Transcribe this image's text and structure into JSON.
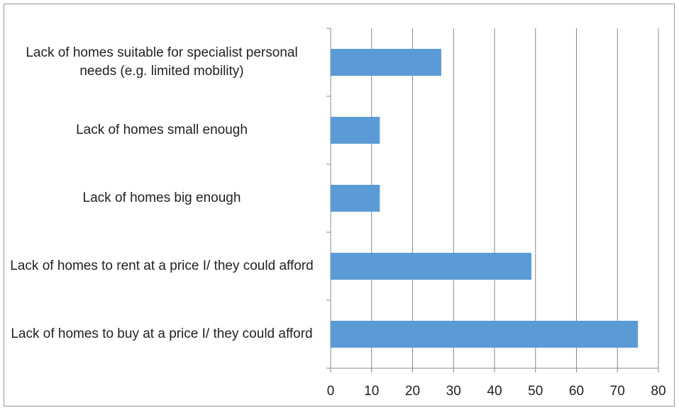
{
  "chart_data": {
    "type": "bar",
    "orientation": "horizontal",
    "categories": [
      "Lack of homes suitable for specialist personal needs (e.g. limited mobility)",
      "Lack of homes small enough",
      "Lack of homes big enough",
      "Lack of homes to rent at a price I/ they could afford",
      "Lack of homes to buy at a price I/ they could afford"
    ],
    "values": [
      27,
      12,
      12,
      49,
      75
    ],
    "color": "#5b9bd5",
    "xlim": [
      0,
      80
    ],
    "xticks": [
      0,
      10,
      20,
      30,
      40,
      50,
      60,
      70,
      80
    ],
    "grid": true
  }
}
